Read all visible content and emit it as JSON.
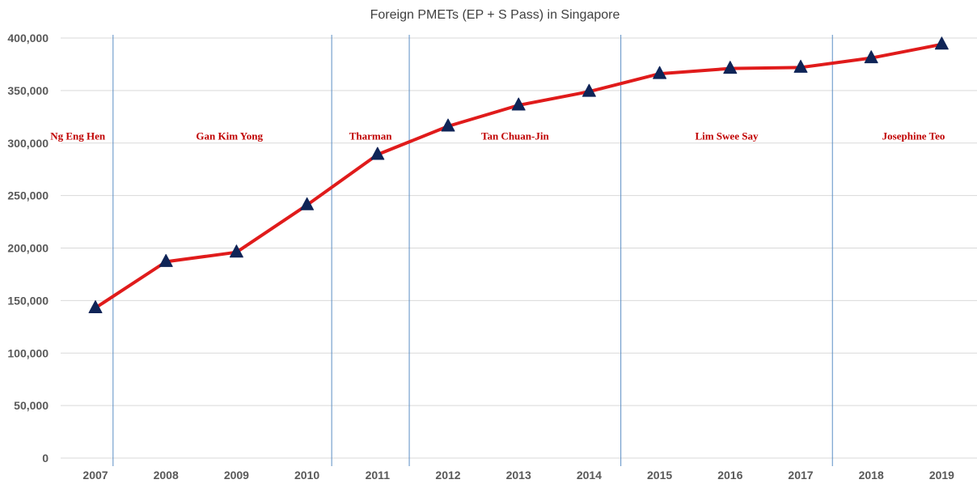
{
  "chart_data": {
    "type": "line",
    "title": "Foreign PMETs (EP + S Pass) in Singapore",
    "xlabel": "",
    "ylabel": "",
    "categories": [
      "2007",
      "2008",
      "2009",
      "2010",
      "2011",
      "2012",
      "2013",
      "2014",
      "2015",
      "2016",
      "2017",
      "2018",
      "2019"
    ],
    "series": [
      {
        "values": [
          143000,
          187000,
          196000,
          241000,
          289000,
          316000,
          336000,
          349000,
          366000,
          371000,
          372000,
          381000,
          394000
        ],
        "color": "#e01b1b",
        "marker": "triangle",
        "marker_color": "#0f2457"
      }
    ],
    "ylim": [
      0,
      400000
    ],
    "yticks": [
      0,
      50000,
      100000,
      150000,
      200000,
      250000,
      300000,
      350000,
      400000
    ],
    "ytick_labels": [
      "0",
      "50,000",
      "100,000",
      "150,000",
      "200,000",
      "250,000",
      "300,000",
      "350,000",
      "400,000"
    ],
    "grid": true,
    "legend": "none",
    "period_dividers": [
      2007.25,
      2010.35,
      2011.45,
      2014.45,
      2017.45
    ],
    "divider_color": "#5b8ec4",
    "annotations": [
      {
        "text": "Ng Eng Hen",
        "x": 2006.75
      },
      {
        "text": "Gan Kim Yong",
        "x": 2008.9
      },
      {
        "text": "Tharman",
        "x": 2010.9
      },
      {
        "text": "Tan Chuan-Jin",
        "x": 2012.95
      },
      {
        "text": "Lim Swee Say",
        "x": 2015.95
      },
      {
        "text": "Josephine Teo",
        "x": 2018.6
      }
    ],
    "annotation_y": 307000,
    "annotation_color": "#c00000"
  }
}
